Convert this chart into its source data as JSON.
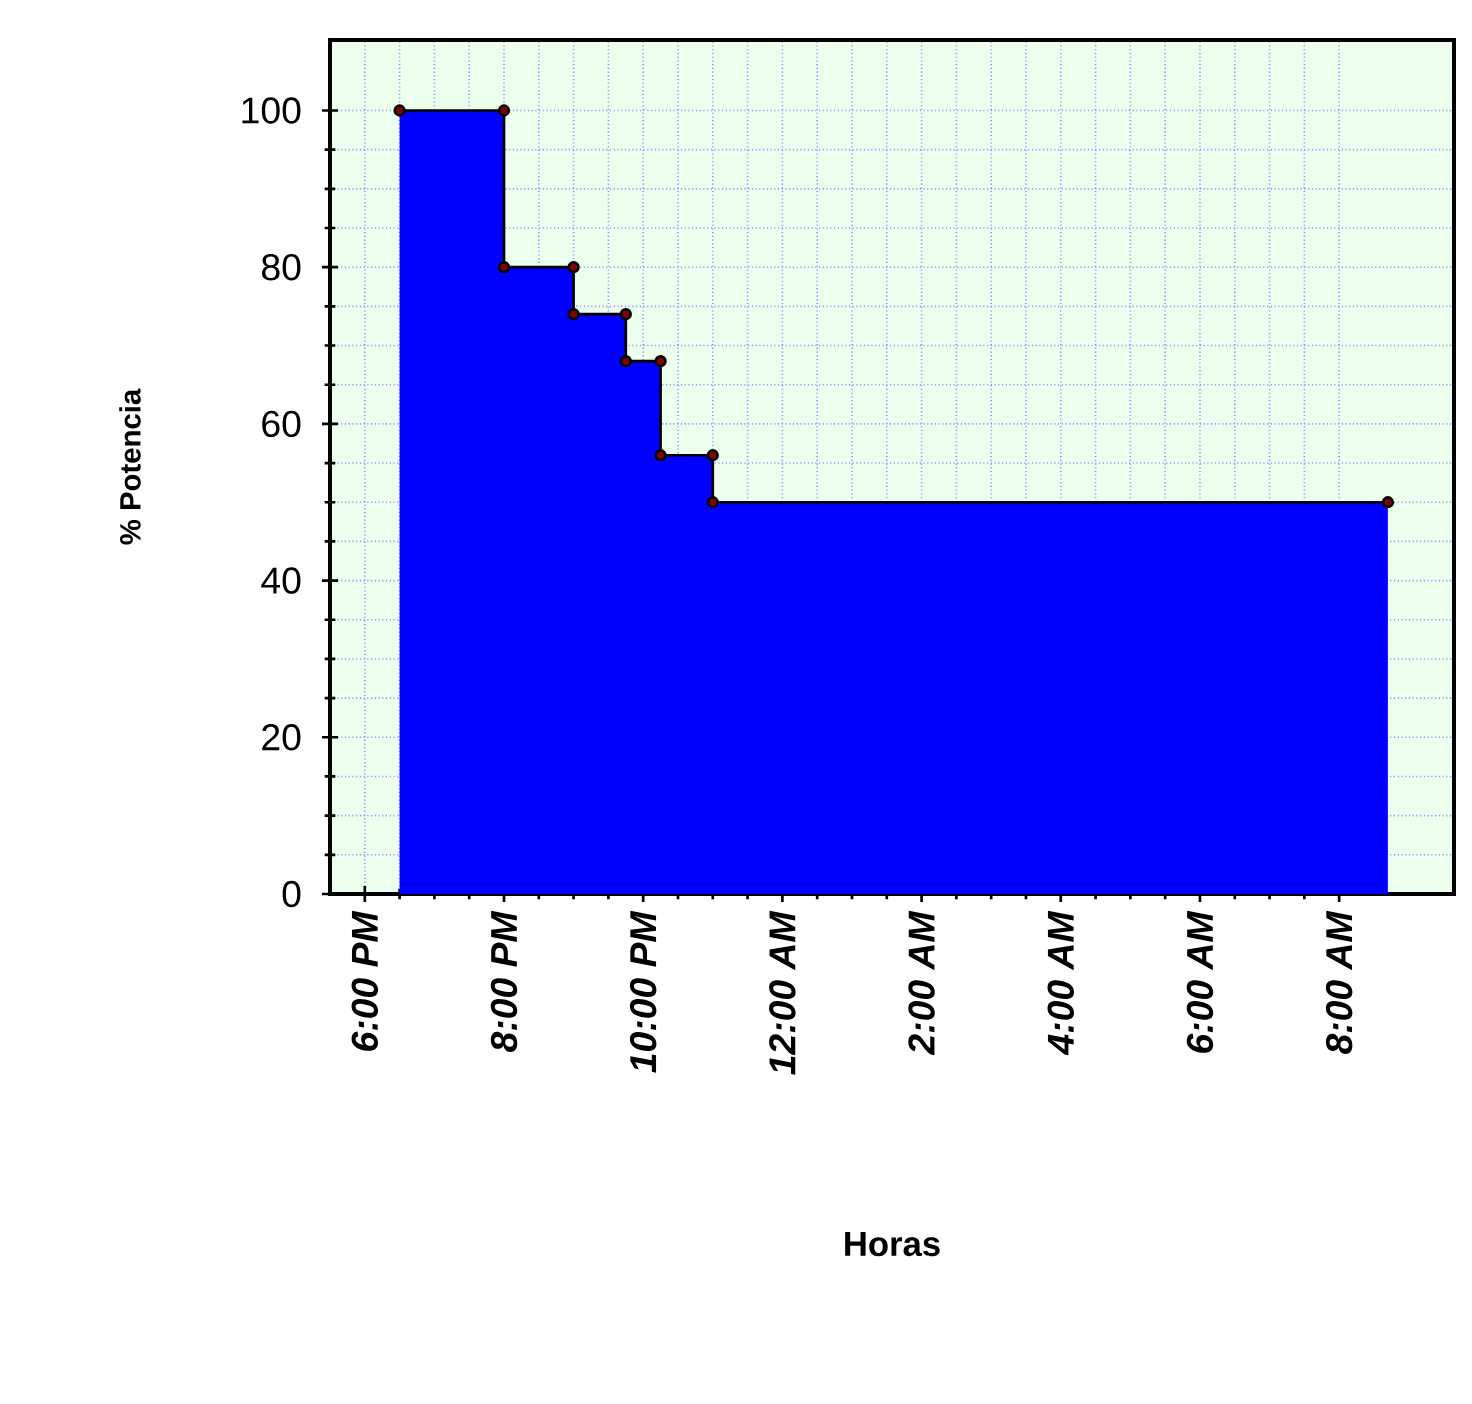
{
  "chart_data": {
    "type": "area",
    "xlabel": "Horas",
    "ylabel": "% Potencia",
    "x": [
      "2000-01-01T18:30",
      "2000-01-01T20:00",
      "2000-01-01T20:00",
      "2000-01-01T21:00",
      "2000-01-01T21:00",
      "2000-01-01T21:45",
      "2000-01-01T21:45",
      "2000-01-01T22:15",
      "2000-01-01T22:15",
      "2000-01-01T23:00",
      "2000-01-01T23:00",
      "2000-01-02T08:42"
    ],
    "series": [
      {
        "color": "#0000ff",
        "values": [
          100,
          100,
          80,
          80,
          74,
          74,
          68,
          68,
          56,
          56,
          50,
          50
        ]
      }
    ],
    "xlim": [
      "2000-01-01T17:30",
      "2000-01-02T09:39"
    ],
    "ylim": [
      0,
      109
    ],
    "xticks": [
      {
        "value": "2000-01-01T18:00",
        "label": "6:00 PM"
      },
      {
        "value": "2000-01-01T20:00",
        "label": "8:00 PM"
      },
      {
        "value": "2000-01-01T22:00",
        "label": "10:00 PM"
      },
      {
        "value": "2000-01-02T00:00",
        "label": "12:00 AM"
      },
      {
        "value": "2000-01-02T02:00",
        "label": "2:00 AM"
      },
      {
        "value": "2000-01-02T04:00",
        "label": "4:00 AM"
      },
      {
        "value": "2000-01-02T06:00",
        "label": "6:00 AM"
      },
      {
        "value": "2000-01-02T08:00",
        "label": "8:00 AM"
      }
    ],
    "yticks": [
      0,
      20,
      40,
      60,
      80,
      100
    ],
    "grid": true,
    "marker": "circle"
  }
}
